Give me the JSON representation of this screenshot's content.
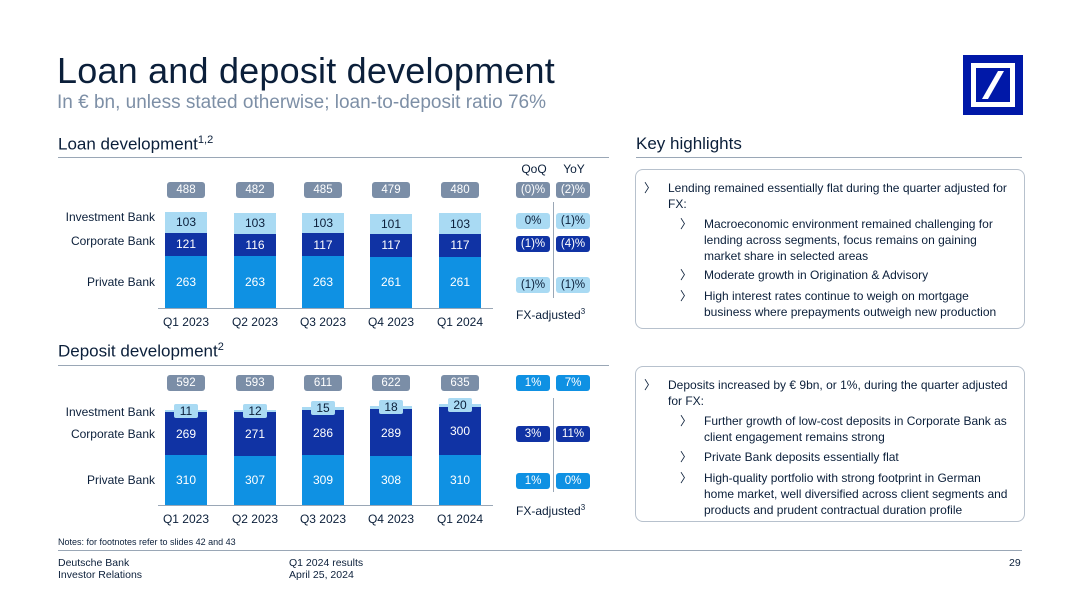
{
  "header": {
    "title": "Loan and deposit development",
    "subtitle": "In € bn, unless stated otherwise; loan-to-deposit ratio 76%",
    "brand_color": "#0018a8"
  },
  "loan": {
    "section_title": "Loan development",
    "section_sup": "1,2",
    "row_labels": {
      "ib": "Investment Bank",
      "cb": "Corporate Bank",
      "pb": "Private Bank"
    },
    "col_headers": {
      "qoq": "QoQ",
      "yoy": "YoY"
    },
    "changes": {
      "total": [
        "(0)%",
        "(2)%"
      ],
      "ib": [
        "0%",
        "(1)%"
      ],
      "cb": [
        "(1)%",
        "(4)%"
      ],
      "pb": [
        "(1)%",
        "(1)%"
      ]
    },
    "fx_adjusted": "FX-adjusted",
    "fx_sup": "3"
  },
  "deposit": {
    "section_title": "Deposit development",
    "section_sup": "2",
    "row_labels": {
      "ib": "Investment Bank",
      "cb": "Corporate Bank",
      "pb": "Private Bank"
    },
    "changes": {
      "total": [
        "1%",
        "7%"
      ],
      "cb": [
        "3%",
        "11%"
      ],
      "pb": [
        "1%",
        "0%"
      ]
    },
    "fx_adjusted": "FX-adjusted",
    "fx_sup": "3"
  },
  "chart_data": [
    {
      "type": "bar",
      "stacked": true,
      "title": "Loan development",
      "categories": [
        "Q1 2023",
        "Q2 2023",
        "Q3 2023",
        "Q4 2023",
        "Q1 2024"
      ],
      "totals": [
        "488",
        "482",
        "485",
        "479",
        "480"
      ],
      "series": [
        {
          "name": "Private Bank",
          "values": [
            263,
            263,
            263,
            261,
            261
          ],
          "color": "#0f91e3"
        },
        {
          "name": "Corporate Bank",
          "values": [
            121,
            116,
            117,
            117,
            117
          ],
          "color": "#1033a4"
        },
        {
          "name": "Investment Bank",
          "values": [
            103,
            103,
            103,
            101,
            103
          ],
          "color": "#a9daf3"
        }
      ]
    },
    {
      "type": "bar",
      "stacked": true,
      "title": "Deposit development",
      "categories": [
        "Q1 2023",
        "Q2 2023",
        "Q3 2023",
        "Q4 2023",
        "Q1 2024"
      ],
      "totals": [
        "592",
        "593",
        "611",
        "622",
        "635"
      ],
      "series": [
        {
          "name": "Private Bank",
          "values": [
            310,
            307,
            309,
            308,
            310
          ],
          "color": "#0f91e3"
        },
        {
          "name": "Corporate Bank",
          "values": [
            269,
            271,
            286,
            289,
            300
          ],
          "color": "#1033a4"
        },
        {
          "name": "Investment Bank",
          "values": [
            11,
            12,
            15,
            18,
            20
          ],
          "color": "#a9daf3"
        }
      ]
    }
  ],
  "highlights": {
    "title": "Key highlights",
    "box1": {
      "main": "Lending remained essentially flat during the quarter adjusted for FX:",
      "subs": [
        "Macroeconomic environment remained challenging for lending across segments, focus remains on gaining market share in selected areas",
        "Moderate growth in Origination & Advisory",
        "High interest rates continue to weigh on mortgage business where prepayments outweigh new production"
      ]
    },
    "box2": {
      "main": "Deposits increased by € 9bn, or 1%, during the quarter adjusted for FX:",
      "subs": [
        "Further growth of low-cost deposits in Corporate Bank as client engagement remains strong",
        "Private Bank deposits essentially flat",
        "High-quality portfolio with strong footprint in German home market, well diversified across client segments and products and prudent contractual duration profile"
      ]
    },
    "marker": "〉"
  },
  "footer": {
    "notes": "Notes: for footnotes refer to slides 42 and 43",
    "company": "Deutsche Bank",
    "department": "Investor Relations",
    "doc": "Q1 2024 results",
    "date": "April 25, 2024",
    "page": "29"
  }
}
